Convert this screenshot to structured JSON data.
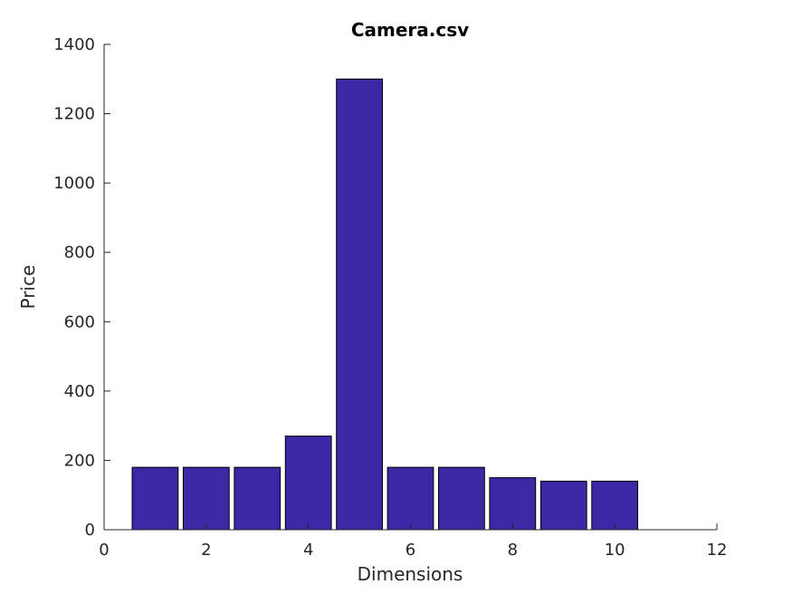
{
  "chart_data": {
    "type": "bar",
    "title": "Camera.csv",
    "xlabel": "Dimensions",
    "ylabel": "Price",
    "x": [
      1,
      2,
      3,
      4,
      5,
      6,
      7,
      8,
      9,
      10
    ],
    "values": [
      180,
      180,
      180,
      270,
      1300,
      180,
      180,
      150,
      140,
      140
    ],
    "xlim": [
      0,
      12
    ],
    "ylim": [
      0,
      1400
    ],
    "xticks": [
      0,
      2,
      4,
      6,
      8,
      10,
      12
    ],
    "yticks": [
      0,
      200,
      400,
      600,
      800,
      1000,
      1200,
      1400
    ],
    "bar_color": "#3c28a5",
    "bar_edge_color": "#000000",
    "grid": false,
    "legend": "none"
  }
}
